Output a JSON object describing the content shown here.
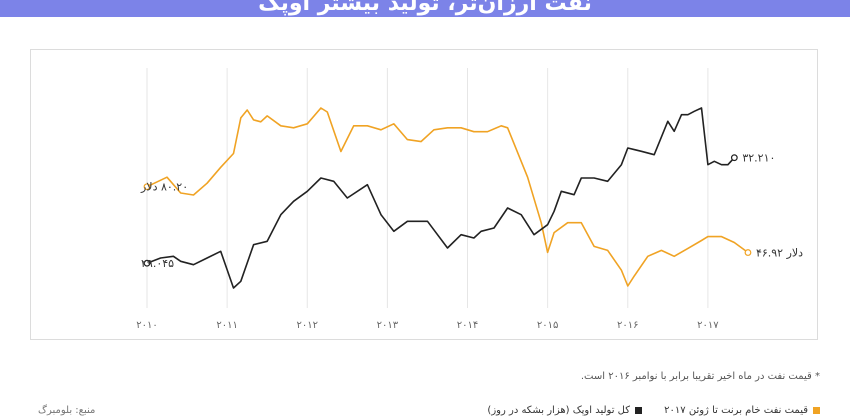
{
  "header": {
    "title": "نفت ارزان‌تر، تولید بیشتر اوپک"
  },
  "footnote": "* قیمت نفت در ماه اخیر تقریبا برابر با نوامبر ۲۰۱۶ است.",
  "source": "منبع: بلومبرگ",
  "colors": {
    "banner": "#7c83e8",
    "oil": "#f0a324",
    "opec": "#222222"
  },
  "chart_data": {
    "type": "line",
    "x_tick_labels": [
      "۲۰۱۰",
      "۲۰۱۱",
      "۲۰۱۲",
      "۲۰۱۳",
      "۲۰۱۴",
      "۲۰۱۵",
      "۲۰۱۶",
      "۲۰۱۷"
    ],
    "xlim": [
      2010.0,
      2017.75
    ],
    "grid": "vertical",
    "legend_position": "bottom-right",
    "series": [
      {
        "name": "قیمت نفت خام برنت تا ژوئن ۲۰۱۷",
        "axis": "price",
        "unit": "USD",
        "start_label": "۸۰.۲۰ دلار",
        "end_label": "۴۶.۹۲ دلار",
        "x": [
          2010.0,
          2010.25,
          2010.42,
          2010.58,
          2010.75,
          2010.92,
          2011.08,
          2011.17,
          2011.25,
          2011.33,
          2011.42,
          2011.5,
          2011.67,
          2011.83,
          2012.0,
          2012.17,
          2012.25,
          2012.42,
          2012.58,
          2012.75,
          2012.92,
          2013.08,
          2013.25,
          2013.42,
          2013.58,
          2013.75,
          2013.92,
          2014.08,
          2014.25,
          2014.42,
          2014.5,
          2014.58,
          2014.75,
          2014.92,
          2015.0,
          2015.08,
          2015.25,
          2015.42,
          2015.58,
          2015.75,
          2015.92,
          2016.0,
          2016.08,
          2016.25,
          2016.42,
          2016.58,
          2016.75,
          2016.92,
          2017.0,
          2017.17,
          2017.33,
          2017.5
        ],
        "y": [
          80.2,
          85.0,
          77.0,
          76.0,
          82.0,
          90.0,
          97.0,
          115.0,
          119.0,
          114.0,
          113.0,
          116.0,
          111.0,
          110.0,
          112.0,
          120.0,
          118.0,
          98.0,
          111.0,
          111.0,
          109.0,
          112.0,
          104.0,
          103.0,
          109.0,
          110.0,
          110.0,
          108.0,
          108.0,
          111.0,
          110.0,
          102.0,
          85.0,
          62.0,
          47.0,
          57.0,
          62.0,
          62.0,
          50.0,
          48.0,
          38.0,
          30.0,
          35.0,
          45.0,
          48.0,
          45.0,
          49.0,
          53.0,
          55.0,
          55.0,
          52.0,
          46.92
        ]
      },
      {
        "name": "کل تولید اوپک (هزار بشکه در روز)",
        "axis": "production",
        "unit": "thousand barrels/day",
        "start_label": "۲۹.۰۴۵",
        "end_label": "۳۲.۲۱۰",
        "x": [
          2010.0,
          2010.17,
          2010.33,
          2010.42,
          2010.58,
          2010.75,
          2010.92,
          2011.08,
          2011.17,
          2011.33,
          2011.5,
          2011.67,
          2011.83,
          2012.0,
          2012.17,
          2012.33,
          2012.5,
          2012.75,
          2012.92,
          2013.08,
          2013.25,
          2013.5,
          2013.75,
          2013.92,
          2014.08,
          2014.17,
          2014.33,
          2014.5,
          2014.67,
          2014.83,
          2015.0,
          2015.08,
          2015.17,
          2015.33,
          2015.42,
          2015.58,
          2015.75,
          2015.92,
          2016.0,
          2016.17,
          2016.33,
          2016.5,
          2016.58,
          2016.67,
          2016.75,
          2016.83,
          2016.92,
          2017.0,
          2017.08,
          2017.17,
          2017.25,
          2017.33
        ],
        "y": [
          29.045,
          29.2,
          29.25,
          29.1,
          29.0,
          29.2,
          29.4,
          28.3,
          28.5,
          29.6,
          29.7,
          30.5,
          30.9,
          31.2,
          31.6,
          31.5,
          31.0,
          31.4,
          30.5,
          30.0,
          30.3,
          30.3,
          29.5,
          29.9,
          29.8,
          30.0,
          30.1,
          30.7,
          30.5,
          29.9,
          30.2,
          30.6,
          31.2,
          31.1,
          31.6,
          31.6,
          31.5,
          32.0,
          32.5,
          32.4,
          32.3,
          33.3,
          33.0,
          33.5,
          33.5,
          33.6,
          33.7,
          32.0,
          32.1,
          32.0,
          32.0,
          32.21
        ]
      }
    ]
  }
}
